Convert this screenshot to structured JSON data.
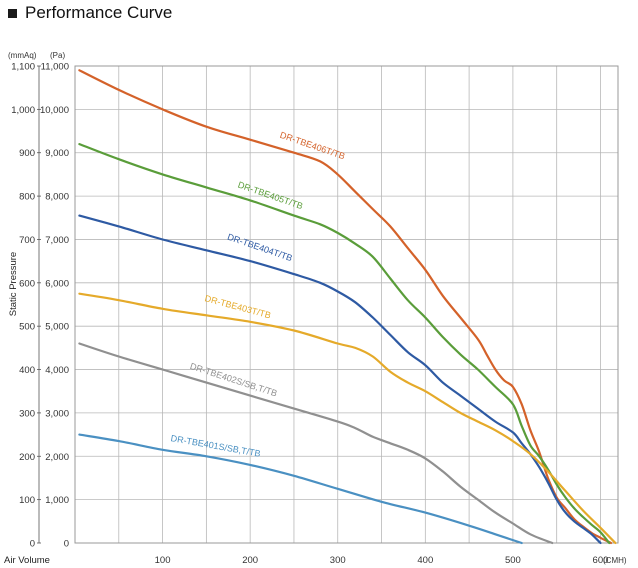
{
  "title": "Performance Curve",
  "chart_data": {
    "type": "line",
    "title": "Performance Curve",
    "xlabel": "Air Volume",
    "x_unit": "(CMH)",
    "ylabel": "Static Pressure",
    "y_unit_left": "(mmAq)",
    "y_unit_right": "(Pa)",
    "xlim": [
      0,
      620
    ],
    "ylim": [
      0,
      11000
    ],
    "x_ticks": [
      "100",
      "200",
      "300",
      "400",
      "500",
      "600"
    ],
    "y_ticks_mmaq": [
      "0",
      "100",
      "200",
      "300",
      "400",
      "500",
      "600",
      "700",
      "800",
      "900",
      "1,000",
      "1,100"
    ],
    "y_ticks_pa": [
      "0",
      "1,000",
      "2,000",
      "3,000",
      "4,000",
      "5,000",
      "6,000",
      "7,000",
      "8,000",
      "9,000",
      "10,000",
      "11,000"
    ],
    "grid": true,
    "series": [
      {
        "name": "DR-TBE406T/TB",
        "color": "#d4622a",
        "label_at": [
          270,
          9100
        ],
        "label_rotate": 19,
        "x": [
          5,
          50,
          100,
          150,
          200,
          250,
          280,
          300,
          320,
          340,
          360,
          380,
          400,
          420,
          440,
          460,
          470,
          480,
          490,
          500,
          510,
          520,
          530,
          540,
          550,
          560,
          570,
          580,
          590,
          600,
          612
        ],
        "y": [
          10900,
          10450,
          10000,
          9600,
          9300,
          9000,
          8800,
          8500,
          8100,
          7700,
          7300,
          6800,
          6300,
          5700,
          5200,
          4700,
          4350,
          4000,
          3750,
          3600,
          3200,
          2600,
          2100,
          1500,
          1050,
          800,
          550,
          380,
          230,
          120,
          0
        ]
      },
      {
        "name": "DR-TBE405T/TB",
        "color": "#5a9d3a",
        "label_at": [
          222,
          7950
        ],
        "label_rotate": 19,
        "x": [
          5,
          50,
          100,
          150,
          200,
          250,
          280,
          300,
          320,
          340,
          360,
          380,
          400,
          420,
          440,
          460,
          480,
          500,
          510,
          520,
          530,
          540,
          550,
          560,
          570,
          580,
          590,
          600,
          610
        ],
        "y": [
          9200,
          8850,
          8500,
          8200,
          7900,
          7550,
          7350,
          7150,
          6900,
          6600,
          6100,
          5600,
          5200,
          4750,
          4350,
          4000,
          3600,
          3200,
          2700,
          2250,
          2000,
          1700,
          1350,
          1050,
          800,
          600,
          420,
          250,
          0
        ]
      },
      {
        "name": "DR-TBE404T/TB",
        "color": "#2e5aa3",
        "label_at": [
          210,
          6750
        ],
        "label_rotate": 19,
        "x": [
          5,
          50,
          100,
          150,
          200,
          250,
          280,
          300,
          320,
          340,
          360,
          380,
          400,
          420,
          440,
          460,
          480,
          500,
          510,
          520,
          530,
          540,
          550,
          560,
          570,
          580,
          590,
          600
        ],
        "y": [
          7550,
          7300,
          7000,
          6750,
          6500,
          6200,
          6000,
          5800,
          5550,
          5200,
          4800,
          4400,
          4100,
          3700,
          3400,
          3100,
          2800,
          2550,
          2300,
          2050,
          1750,
          1400,
          1000,
          700,
          500,
          350,
          200,
          0
        ]
      },
      {
        "name": "DR-TBE403T/TB",
        "color": "#e5aa2a",
        "label_at": [
          185,
          5380
        ],
        "label_rotate": 15,
        "x": [
          5,
          50,
          100,
          150,
          200,
          250,
          300,
          320,
          340,
          360,
          380,
          400,
          420,
          440,
          460,
          480,
          500,
          520,
          540,
          560,
          580,
          600,
          617
        ],
        "y": [
          5750,
          5600,
          5400,
          5250,
          5100,
          4900,
          4600,
          4500,
          4300,
          3950,
          3700,
          3500,
          3250,
          3000,
          2800,
          2600,
          2350,
          2050,
          1650,
          1200,
          750,
          350,
          0
        ]
      },
      {
        "name": "DR-TBE402S/SB,T/TB",
        "color": "#909090",
        "label_at": [
          180,
          3700
        ],
        "label_rotate": 18,
        "x": [
          5,
          50,
          100,
          150,
          200,
          250,
          300,
          320,
          340,
          360,
          380,
          400,
          420,
          440,
          460,
          480,
          500,
          520,
          545
        ],
        "y": [
          4600,
          4300,
          4000,
          3700,
          3400,
          3100,
          2800,
          2650,
          2450,
          2300,
          2150,
          1950,
          1650,
          1300,
          1000,
          700,
          450,
          200,
          0
        ]
      },
      {
        "name": "DR-TBE401S/SB,T/TB",
        "color": "#4a90c2",
        "label_at": [
          160,
          2170
        ],
        "label_rotate": 10,
        "x": [
          5,
          50,
          100,
          150,
          200,
          250,
          300,
          350,
          400,
          450,
          480,
          510
        ],
        "y": [
          2500,
          2350,
          2150,
          2000,
          1800,
          1550,
          1250,
          950,
          700,
          400,
          200,
          0
        ]
      }
    ]
  }
}
